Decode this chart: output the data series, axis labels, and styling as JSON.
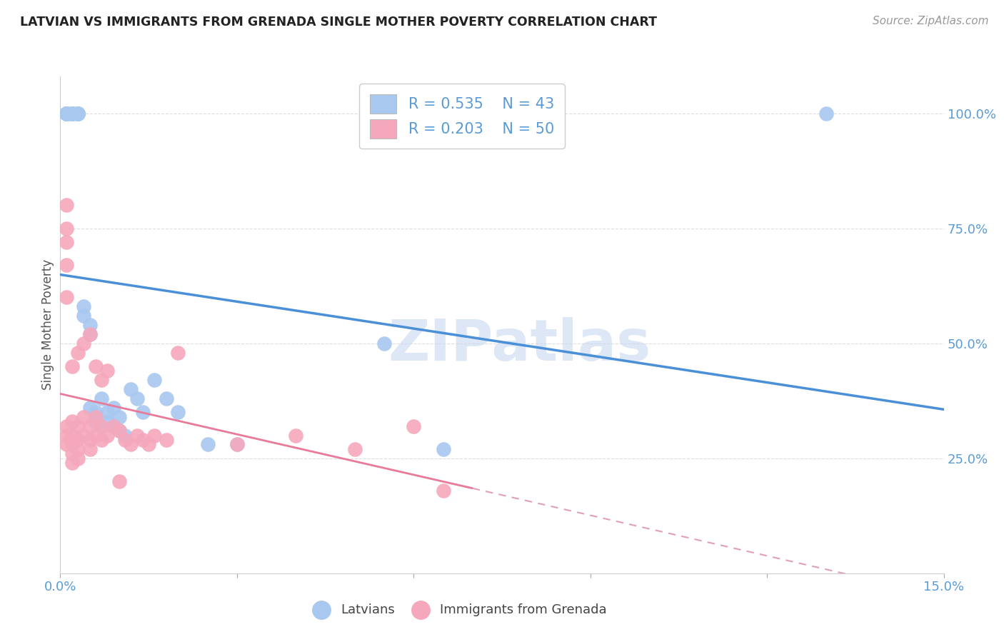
{
  "title": "LATVIAN VS IMMIGRANTS FROM GRENADA SINGLE MOTHER POVERTY CORRELATION CHART",
  "source": "Source: ZipAtlas.com",
  "ylabel": "Single Mother Poverty",
  "ytick_vals": [
    0.25,
    0.5,
    0.75,
    1.0
  ],
  "ytick_labels": [
    "25.0%",
    "50.0%",
    "75.0%",
    "100.0%"
  ],
  "xlim": [
    0.0,
    0.15
  ],
  "ylim": [
    0.0,
    1.08
  ],
  "legend_blue_R": "0.535",
  "legend_blue_N": "43",
  "legend_pink_R": "0.203",
  "legend_pink_N": "50",
  "blue_dot_color": "#A8C8F0",
  "pink_dot_color": "#F5A8BC",
  "blue_line_color": "#4A90D9",
  "pink_line_color": "#E87A9A",
  "pink_dash_color": "#E0A0B8",
  "watermark_color": "#C8D8F0",
  "background_color": "#FFFFFF",
  "grid_color": "#DDDDDD",
  "title_color": "#222222",
  "tick_color": "#5B9BD5",
  "ylabel_color": "#555555",
  "latvian_x": [
    0.001,
    0.001,
    0.001,
    0.001,
    0.001,
    0.001,
    0.001,
    0.001,
    0.002,
    0.002,
    0.002,
    0.002,
    0.003,
    0.003,
    0.003,
    0.003,
    0.004,
    0.004,
    0.005,
    0.005,
    0.005,
    0.006,
    0.006,
    0.007,
    0.007,
    0.008,
    0.008,
    0.009,
    0.009,
    0.01,
    0.01,
    0.011,
    0.012,
    0.013,
    0.014,
    0.016,
    0.018,
    0.02,
    0.025,
    0.03,
    0.055,
    0.065,
    0.13
  ],
  "latvian_y": [
    1.0,
    1.0,
    1.0,
    1.0,
    1.0,
    1.0,
    1.0,
    1.0,
    1.0,
    1.0,
    1.0,
    1.0,
    1.0,
    1.0,
    1.0,
    1.0,
    0.58,
    0.56,
    0.54,
    0.52,
    0.36,
    0.35,
    0.33,
    0.38,
    0.32,
    0.35,
    0.33,
    0.36,
    0.32,
    0.34,
    0.31,
    0.3,
    0.4,
    0.38,
    0.35,
    0.42,
    0.38,
    0.35,
    0.28,
    0.28,
    0.5,
    0.27,
    1.0
  ],
  "grenada_x": [
    0.001,
    0.001,
    0.001,
    0.001,
    0.001,
    0.001,
    0.002,
    0.002,
    0.002,
    0.002,
    0.002,
    0.003,
    0.003,
    0.003,
    0.003,
    0.004,
    0.004,
    0.005,
    0.005,
    0.005,
    0.006,
    0.006,
    0.007,
    0.007,
    0.008,
    0.009,
    0.01,
    0.011,
    0.012,
    0.013,
    0.014,
    0.015,
    0.016,
    0.018,
    0.02,
    0.001,
    0.001,
    0.002,
    0.003,
    0.004,
    0.005,
    0.006,
    0.007,
    0.008,
    0.01,
    0.03,
    0.04,
    0.05,
    0.06,
    0.065
  ],
  "grenada_y": [
    0.32,
    0.3,
    0.28,
    0.6,
    0.67,
    0.72,
    0.33,
    0.3,
    0.28,
    0.26,
    0.24,
    0.32,
    0.29,
    0.27,
    0.25,
    0.34,
    0.3,
    0.32,
    0.29,
    0.27,
    0.34,
    0.3,
    0.32,
    0.29,
    0.3,
    0.32,
    0.31,
    0.29,
    0.28,
    0.3,
    0.29,
    0.28,
    0.3,
    0.29,
    0.48,
    0.8,
    0.75,
    0.45,
    0.48,
    0.5,
    0.52,
    0.45,
    0.42,
    0.44,
    0.2,
    0.28,
    0.3,
    0.27,
    0.32,
    0.18
  ]
}
